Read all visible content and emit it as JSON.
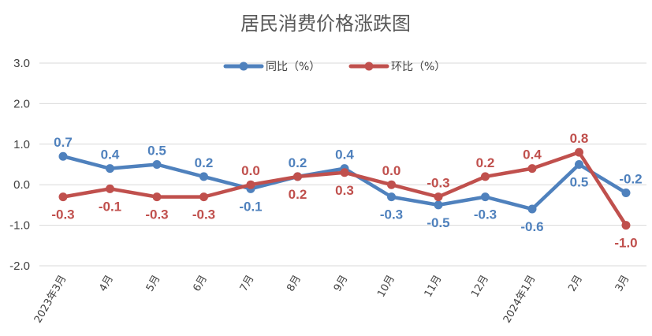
{
  "chart_data": {
    "type": "line",
    "title": "居民消费价格涨跌图",
    "categories": [
      "2023年3月",
      "4月",
      "5月",
      "6月",
      "7月",
      "8月",
      "9月",
      "10月",
      "11月",
      "12月",
      "2024年1月",
      "2月",
      "3月"
    ],
    "series": [
      {
        "name": "同比（%）",
        "color": "#4f81bd",
        "values": [
          0.7,
          0.4,
          0.5,
          0.2,
          -0.1,
          0.2,
          0.4,
          -0.3,
          -0.5,
          -0.3,
          -0.6,
          0.5,
          -0.2
        ]
      },
      {
        "name": "环比（%）",
        "color": "#c0504d",
        "values": [
          -0.3,
          -0.1,
          -0.3,
          -0.3,
          0.0,
          0.2,
          0.3,
          0.0,
          -0.3,
          0.2,
          0.4,
          0.8,
          -1.0
        ]
      }
    ],
    "y_ticks": [
      "3.0",
      "2.0",
      "1.0",
      "0.0",
      "-1.0",
      "-2.0"
    ],
    "ylim": [
      -2.0,
      3.0
    ],
    "grid": true,
    "legend_position": "top-center"
  }
}
